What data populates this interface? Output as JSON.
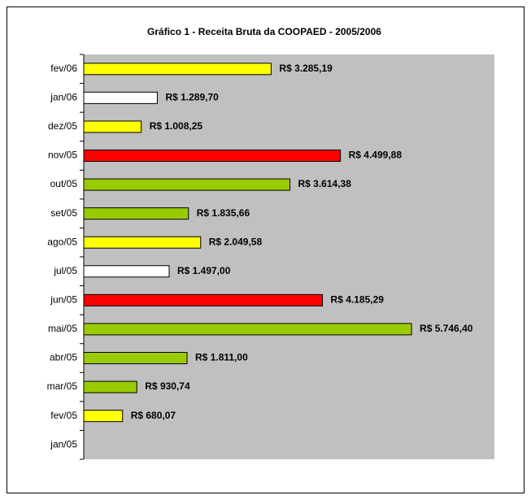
{
  "chart_data": {
    "type": "bar",
    "orientation": "horizontal",
    "title": "Gráfico 1 - Receita Bruta da COOPAED - 2005/2006",
    "categories": [
      "jan/05",
      "fev/05",
      "mar/05",
      "abr/05",
      "mai/05",
      "jun/05",
      "jul/05",
      "ago/05",
      "set/05",
      "out/05",
      "nov/05",
      "dez/05",
      "jan/06",
      "fev/06"
    ],
    "values": [
      null,
      680.07,
      930.74,
      1811.0,
      5746.4,
      4185.29,
      1497.0,
      2049.58,
      1835.66,
      3614.38,
      4499.88,
      1008.25,
      1289.7,
      3285.19
    ],
    "value_labels": [
      null,
      "R$ 680,07",
      "R$ 930,74",
      "R$ 1.811,00",
      "R$ 5.746,40",
      "R$ 4.185,29",
      "R$ 1.497,00",
      "R$ 2.049,58",
      "R$ 1.835,66",
      "R$ 3.614,38",
      "R$ 4.499,88",
      "R$ 1.008,25",
      "R$ 1.289,70",
      "R$ 3.285,19"
    ],
    "colors": [
      null,
      "#ffff00",
      "#99cc00",
      "#99cc00",
      "#99cc00",
      "#ff0000",
      "#ffffff",
      "#ffff00",
      "#99cc00",
      "#99cc00",
      "#ff0000",
      "#ffff00",
      "#ffffff",
      "#ffff00"
    ],
    "xlim": [
      0,
      7200
    ],
    "plot_background": "#c0c0c0"
  }
}
